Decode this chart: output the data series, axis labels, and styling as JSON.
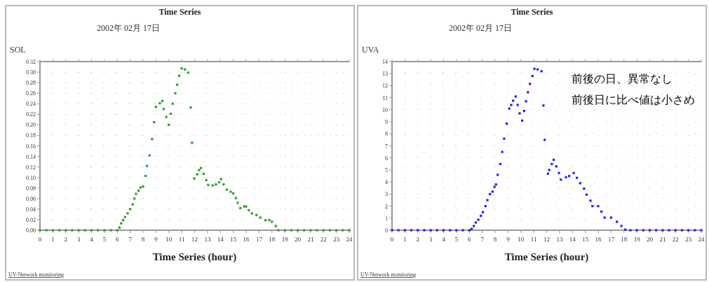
{
  "chart_data": [
    {
      "type": "scatter",
      "title": "Time Series",
      "subtitle": "2002年 02月 17日",
      "xlabel": "Time Series (hour)",
      "ylabel": "SOL",
      "marker": "square",
      "grid": true,
      "xlim": [
        0,
        24
      ],
      "xticks": [
        0,
        1,
        2,
        3,
        4,
        5,
        6,
        7,
        8,
        9,
        10,
        11,
        12,
        13,
        14,
        15,
        16,
        17,
        18,
        19,
        20,
        21,
        22,
        23,
        24
      ],
      "ylim": [
        0,
        0.32
      ],
      "yticks": [
        {
          "value": 0,
          "label": "0.00"
        },
        {
          "value": 0.02,
          "label": "0.02"
        },
        {
          "value": 0.04,
          "label": "0.04"
        },
        {
          "value": 0.06,
          "label": "0.06"
        },
        {
          "value": 0.08,
          "label": "0.08"
        },
        {
          "value": 0.1,
          "label": "0.10"
        },
        {
          "value": 0.12,
          "label": "0.12"
        },
        {
          "value": 0.14,
          "label": "0.14"
        },
        {
          "value": 0.16,
          "label": "0.16"
        },
        {
          "value": 0.18,
          "label": "0.18"
        },
        {
          "value": 0.2,
          "label": "0.20"
        },
        {
          "value": 0.22,
          "label": "0.22"
        },
        {
          "value": 0.24,
          "label": "0.24"
        },
        {
          "value": 0.26,
          "label": "0.26"
        },
        {
          "value": 0.28,
          "label": "0.28"
        },
        {
          "value": 0.3,
          "label": "0.30"
        },
        {
          "value": 0.32,
          "label": "0.32"
        }
      ],
      "annotations": [
        "UV-Network monitoring"
      ],
      "series": [
        {
          "color": "#2ca02c",
          "x": [
            0,
            0.5,
            1,
            1.5,
            2,
            2.5,
            3,
            3.5,
            4,
            4.5,
            5,
            5.5,
            6,
            6.17,
            6.3,
            6.45,
            6.6,
            6.8,
            7.0,
            7.2,
            7.33,
            7.45,
            7.65,
            7.8,
            8.0,
            8.2,
            8.3,
            8.5,
            8.7,
            8.85,
            9.0,
            9.3,
            9.5,
            9.6,
            9.8,
            10.0,
            10.15,
            10.3,
            10.5,
            10.65,
            10.8,
            11.0,
            11.25,
            11.5,
            11.7,
            11.8,
            11.97,
            12.2,
            12.35,
            12.5,
            12.7,
            12.9,
            13.05,
            13.4,
            13.65,
            13.9,
            14.05,
            14.25,
            14.5,
            14.8,
            15.0,
            15.2,
            15.35,
            15.55,
            15.85,
            16.0,
            16.2,
            16.45,
            16.8,
            17.1,
            17.5,
            17.8,
            18.0,
            18.3,
            18.5,
            19,
            19.5,
            20,
            20.5,
            21,
            21.5,
            22,
            22.5,
            23,
            23.5,
            24
          ],
          "values": [
            0,
            0,
            0,
            0,
            0,
            0,
            0,
            0,
            0,
            0,
            0,
            0,
            0,
            0.005,
            0.013,
            0.019,
            0.025,
            0.032,
            0.04,
            0.049,
            0.06,
            0.069,
            0.075,
            0.081,
            0.083,
            0.103,
            0.122,
            0.142,
            0.173,
            0.205,
            0.234,
            0.241,
            0.245,
            0.23,
            0.215,
            0.2,
            0.221,
            0.24,
            0.26,
            0.276,
            0.293,
            0.307,
            0.305,
            0.299,
            0.233,
            0.166,
            0.098,
            0.106,
            0.114,
            0.118,
            0.107,
            0.095,
            0.086,
            0.085,
            0.087,
            0.091,
            0.097,
            0.087,
            0.077,
            0.073,
            0.07,
            0.061,
            0.052,
            0.042,
            0.045,
            0.045,
            0.038,
            0.032,
            0.029,
            0.024,
            0.019,
            0.019,
            0.016,
            0.008,
            0,
            0,
            0,
            0,
            0,
            0,
            0,
            0,
            0,
            0,
            0,
            0
          ]
        }
      ]
    },
    {
      "type": "scatter",
      "title": "Time Series",
      "subtitle": "2002年 02月 17日",
      "xlabel": "Time Series (hour)",
      "ylabel": "UVA",
      "marker": "square",
      "grid": true,
      "xlim": [
        0,
        24
      ],
      "xticks": [
        0,
        1,
        2,
        3,
        4,
        5,
        6,
        7,
        8,
        9,
        10,
        11,
        12,
        13,
        14,
        15,
        16,
        17,
        18,
        19,
        20,
        21,
        22,
        23,
        24
      ],
      "ylim": [
        0,
        14
      ],
      "yticks": [
        0,
        1,
        2,
        3,
        4,
        5,
        6,
        7,
        8,
        9,
        10,
        11,
        12,
        13,
        14
      ],
      "annotations": [
        "UV-Network monitoring",
        "前後の日、異常なし",
        "前後日に比べ値は小さめ"
      ],
      "series": [
        {
          "color": "#1f1fff",
          "x": [
            0,
            0.5,
            1,
            1.5,
            2,
            2.5,
            3,
            3.5,
            4,
            4.5,
            5,
            5.5,
            6,
            6.18,
            6.35,
            6.5,
            6.7,
            6.9,
            7.05,
            7.25,
            7.4,
            7.6,
            7.8,
            7.95,
            8.07,
            8.2,
            8.4,
            8.55,
            8.7,
            8.9,
            9.1,
            9.25,
            9.4,
            9.6,
            9.75,
            9.9,
            10.1,
            10.25,
            10.4,
            10.55,
            10.7,
            10.9,
            11.05,
            11.3,
            11.6,
            11.75,
            11.85,
            12.1,
            12.2,
            12.4,
            12.55,
            12.75,
            12.95,
            13.1,
            13.5,
            13.75,
            14.1,
            14.35,
            14.6,
            14.9,
            15.1,
            15.4,
            15.55,
            16.0,
            16.25,
            16.5,
            17.0,
            17.45,
            17.8,
            18.1,
            18.5,
            19,
            19.5,
            20,
            20.5,
            21,
            21.5,
            22,
            22.5,
            23,
            23.5,
            24
          ],
          "values": [
            0,
            0,
            0,
            0,
            0,
            0,
            0,
            0,
            0,
            0,
            0,
            0,
            0,
            0.1,
            0.35,
            0.64,
            0.87,
            1.2,
            1.5,
            2.0,
            2.5,
            3.0,
            3.2,
            3.6,
            3.8,
            4.6,
            5.5,
            6.5,
            7.6,
            8.85,
            10.1,
            10.4,
            10.75,
            11.1,
            10.4,
            9.7,
            9.1,
            9.9,
            10.7,
            11.45,
            12.15,
            12.8,
            13.4,
            13.35,
            13.2,
            10.35,
            7.5,
            4.7,
            5.0,
            5.5,
            5.85,
            5.3,
            4.75,
            4.2,
            4.4,
            4.5,
            4.75,
            4.35,
            3.9,
            3.45,
            2.95,
            2.45,
            2.0,
            2.0,
            1.55,
            1.05,
            1.05,
            0.7,
            0.35,
            0.05,
            0,
            0,
            0,
            0,
            0,
            0,
            0,
            0,
            0,
            0,
            0,
            0
          ]
        }
      ]
    }
  ]
}
